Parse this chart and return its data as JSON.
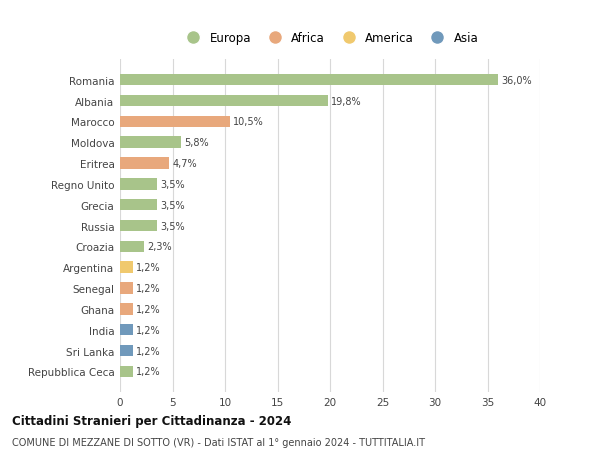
{
  "countries": [
    "Romania",
    "Albania",
    "Marocco",
    "Moldova",
    "Eritrea",
    "Regno Unito",
    "Grecia",
    "Russia",
    "Croazia",
    "Argentina",
    "Senegal",
    "Ghana",
    "India",
    "Sri Lanka",
    "Repubblica Ceca"
  ],
  "values": [
    36.0,
    19.8,
    10.5,
    5.8,
    4.7,
    3.5,
    3.5,
    3.5,
    2.3,
    1.2,
    1.2,
    1.2,
    1.2,
    1.2,
    1.2
  ],
  "labels": [
    "36,0%",
    "19,8%",
    "10,5%",
    "5,8%",
    "4,7%",
    "3,5%",
    "3,5%",
    "3,5%",
    "2,3%",
    "1,2%",
    "1,2%",
    "1,2%",
    "1,2%",
    "1,2%",
    "1,2%"
  ],
  "continents": [
    "Europa",
    "Europa",
    "Africa",
    "Europa",
    "Africa",
    "Europa",
    "Europa",
    "Europa",
    "Europa",
    "America",
    "Africa",
    "Africa",
    "Asia",
    "Asia",
    "Europa"
  ],
  "colors": {
    "Europa": "#a8c48a",
    "Africa": "#e8a87c",
    "America": "#f0c96e",
    "Asia": "#7099bb"
  },
  "legend_order": [
    "Europa",
    "Africa",
    "America",
    "Asia"
  ],
  "title": "Cittadini Stranieri per Cittadinanza - 2024",
  "subtitle": "COMUNE DI MEZZANE DI SOTTO (VR) - Dati ISTAT al 1° gennaio 2024 - TUTTITALIA.IT",
  "xlim": [
    0,
    40
  ],
  "xticks": [
    0,
    5,
    10,
    15,
    20,
    25,
    30,
    35,
    40
  ],
  "background_color": "#ffffff",
  "grid_color": "#d8d8d8"
}
